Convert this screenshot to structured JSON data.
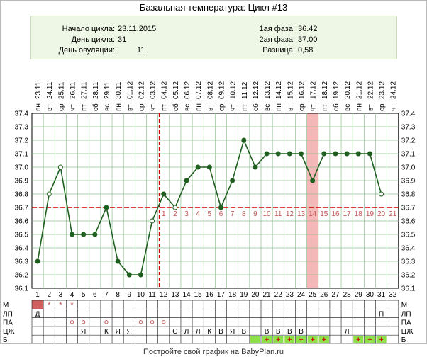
{
  "title": "Базальная температура: Цикл #13",
  "info": {
    "cycle_start_label": "Начало цикла:",
    "cycle_start": "23.11.2015",
    "cycle_day_label": "День цикла:",
    "cycle_day": "31",
    "ovulation_day_label": "День овуляции:",
    "ovulation_day": "11",
    "phase1_label": "1ая фаза:",
    "phase1": "36.42",
    "phase2_label": "2ая фаза:",
    "phase2": "37.00",
    "diff_label": "Разница:",
    "diff": "0,58"
  },
  "footer": "Постройте свой график на BabyPlan.ru",
  "colors": {
    "line": "#1f5f1f",
    "coverline": "#cc0000",
    "ovulation_line": "#cc0000",
    "post_ov_numbers": "#c05050",
    "highlight_col": "#f5b8b8",
    "grid": "#8fbf8f",
    "info_bg": "#eef6e6",
    "menses": "#d06060",
    "green_cell": "#8ee04a",
    "plus": "#cc0000",
    "star": "#c05050",
    "circle": "#c05050"
  },
  "chart_data": {
    "type": "line",
    "title": "Базальная температура: Цикл #13",
    "ylim": [
      36.1,
      37.4
    ],
    "y_ticks": [
      "36.1",
      "36.2",
      "36.3",
      "36.4",
      "36.5",
      "36.6",
      "36.7",
      "36.8",
      "36.9",
      "37.0",
      "37.1",
      "37.2",
      "37.3",
      "37.4"
    ],
    "grid": true,
    "cycle_days": [
      "1",
      "2",
      "3",
      "4",
      "5",
      "6",
      "7",
      "8",
      "9",
      "10",
      "11",
      "12",
      "13",
      "14",
      "15",
      "16",
      "17",
      "18",
      "19",
      "20",
      "21",
      "22",
      "23",
      "24",
      "25",
      "26",
      "27",
      "28",
      "29",
      "30",
      "31",
      "32"
    ],
    "dates": [
      "23.11",
      "24.11",
      "25.11",
      "26.11",
      "27.11",
      "28.11",
      "29.11",
      "30.11",
      "01.12",
      "02.12",
      "03.12",
      "04.12",
      "05.12",
      "06.12",
      "07.12",
      "08.12",
      "09.12",
      "10.12",
      "11.12",
      "12.12",
      "13.12",
      "14.12",
      "15.12",
      "16.12",
      "17.12",
      "18.12",
      "19.12",
      "20.12",
      "21.12",
      "22.12",
      "23.12",
      "24.12"
    ],
    "weekdays": [
      "пн",
      "вт",
      "ср",
      "чт",
      "пт",
      "сб",
      "вс",
      "пн",
      "вт",
      "ср",
      "чт",
      "пт",
      "сб",
      "вс",
      "пн",
      "вт",
      "ср",
      "чт",
      "пт",
      "сб",
      "вс",
      "пн",
      "вт",
      "ср",
      "чт",
      "пт",
      "сб",
      "вс",
      "пн",
      "вт",
      "ср",
      "чт"
    ],
    "series": [
      {
        "values": [
          36.3,
          36.8,
          37.0,
          36.5,
          36.5,
          36.5,
          36.7,
          36.3,
          36.2,
          36.2,
          36.6,
          36.8,
          36.7,
          36.9,
          37.0,
          37.0,
          36.7,
          36.9,
          37.2,
          37.0,
          37.1,
          37.1,
          37.1,
          37.1,
          36.9,
          37.1,
          37.1,
          37.1,
          37.1,
          37.1,
          36.8,
          null
        ],
        "hollow": [
          false,
          true,
          true,
          false,
          false,
          false,
          false,
          false,
          false,
          false,
          true,
          false,
          true,
          false,
          false,
          false,
          false,
          false,
          false,
          false,
          false,
          false,
          false,
          false,
          false,
          false,
          false,
          false,
          false,
          false,
          true,
          false
        ]
      }
    ],
    "coverline": 36.7,
    "ovulation_day": 11,
    "highlight_day": 25,
    "post_ovulation_numbers": [
      "1",
      "2",
      "3",
      "4",
      "5",
      "6",
      "7",
      "8",
      "9",
      "10",
      "11",
      "12",
      "13",
      "14",
      "15",
      "16",
      "17",
      "18",
      "19",
      "20",
      "21"
    ],
    "moon_day": 9
  },
  "rows": {
    "labels": [
      "М",
      "ЛП",
      "ПА",
      "ЦЖ",
      "Б"
    ],
    "M": [
      "fill",
      "*",
      "*",
      "*",
      "",
      "",
      "",
      "",
      "",
      "",
      "",
      "",
      "",
      "",
      "",
      "",
      "",
      "",
      "",
      "",
      "",
      "",
      "",
      "",
      "",
      "",
      "",
      "",
      "",
      "",
      "",
      ""
    ],
    "LP": [
      "Д",
      "",
      "",
      "",
      "",
      "",
      "",
      "",
      "",
      "",
      "",
      "",
      "",
      "",
      "",
      "",
      "",
      "",
      "",
      "",
      "",
      "",
      "",
      "",
      "",
      "",
      "",
      "",
      "",
      "",
      "П",
      ""
    ],
    "PA": [
      "",
      "",
      "",
      "o",
      "o",
      "",
      "o",
      "",
      "",
      "o",
      "o",
      "o",
      "",
      "",
      "",
      "",
      "",
      "",
      "",
      "",
      "",
      "",
      "",
      "",
      "",
      "",
      "",
      "",
      "",
      "",
      "",
      ""
    ],
    "CZH": [
      "",
      "",
      "",
      "",
      "Я",
      "",
      "К",
      "Я",
      "Я",
      "",
      "",
      "",
      "С",
      "Л",
      "Л",
      "К",
      "В",
      "Я",
      "В",
      "",
      "В",
      "В",
      "В",
      "В",
      "",
      "",
      "",
      "Л",
      "",
      "",
      "",
      ""
    ],
    "B": [
      "",
      "",
      "",
      "",
      "",
      "",
      "",
      "",
      "",
      "",
      "",
      "",
      "",
      "",
      "",
      "",
      "",
      "",
      "",
      "g",
      "g+",
      "g+",
      "g+",
      "g+",
      "g+",
      "g+",
      "",
      "",
      "g+",
      "g+",
      "g+",
      ""
    ]
  }
}
